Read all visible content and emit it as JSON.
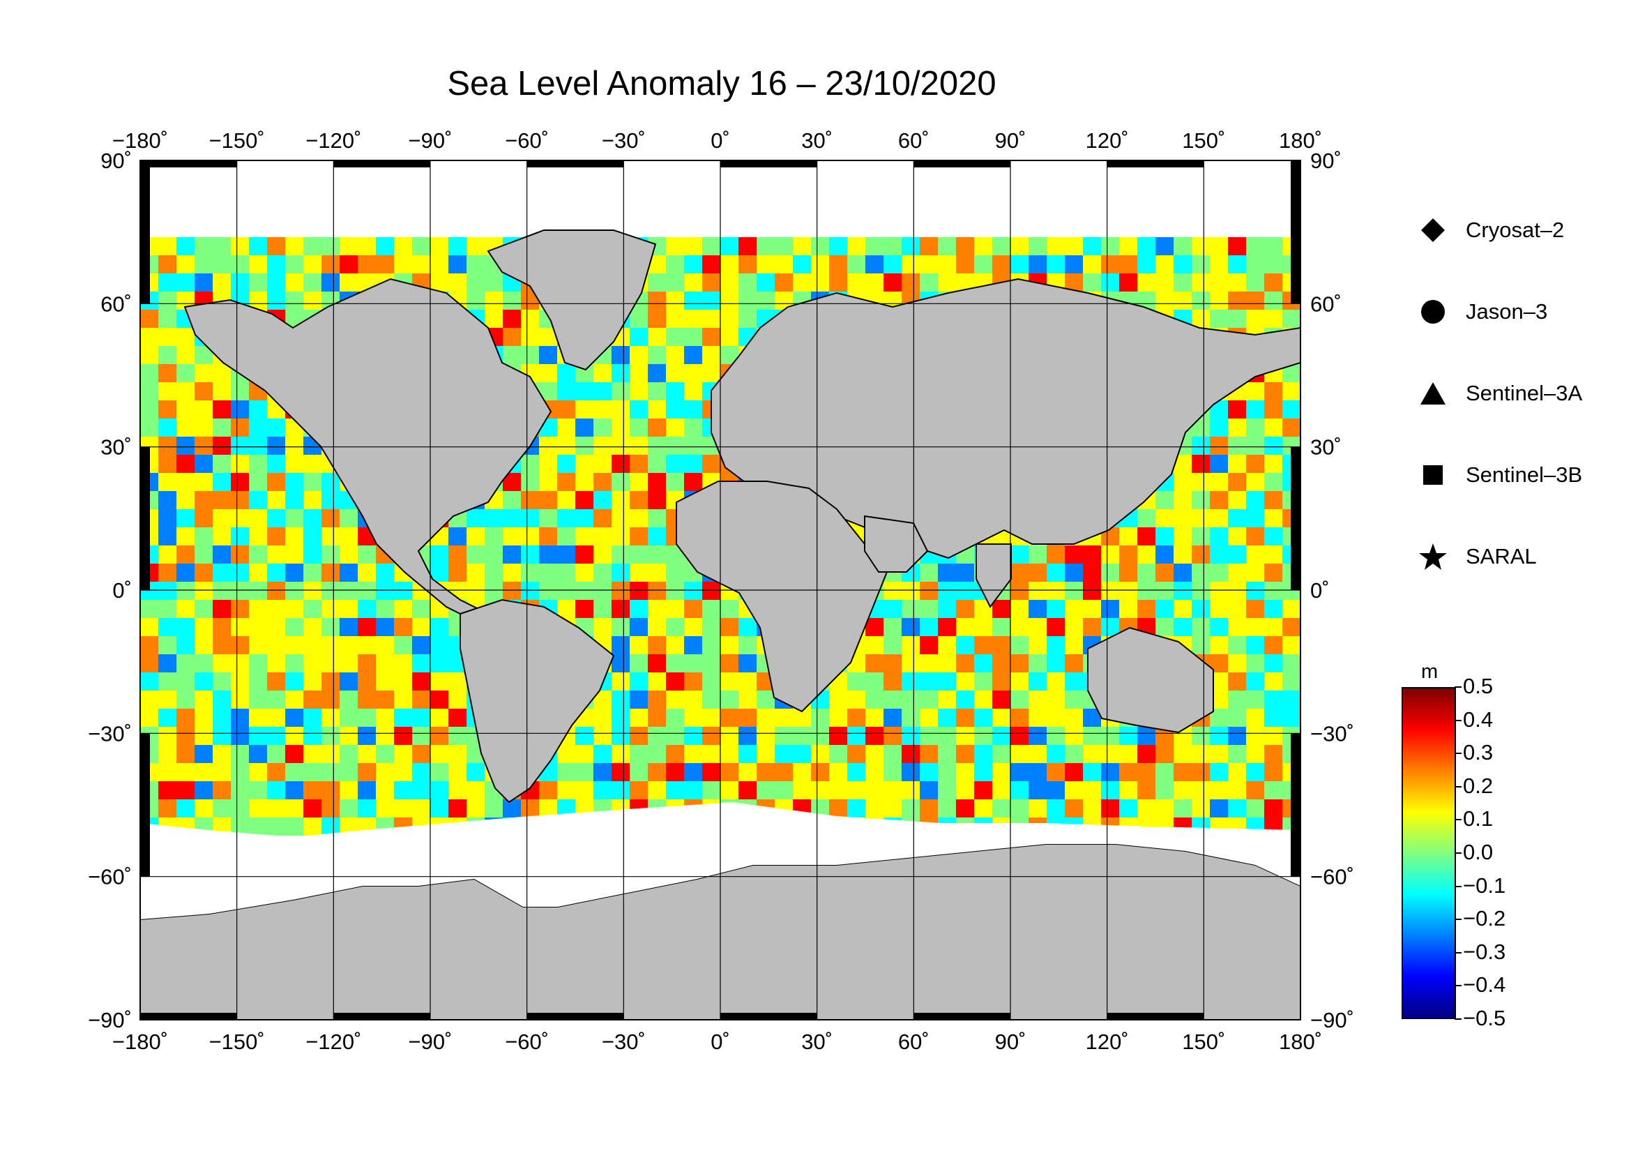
{
  "title": "Sea Level Anomaly 16 – 23/10/2020",
  "map": {
    "lon_ticks": [
      "−180˚",
      "−150˚",
      "−120˚",
      "−90˚",
      "−60˚",
      "−30˚",
      "0˚",
      "30˚",
      "60˚",
      "90˚",
      "120˚",
      "150˚",
      "180˚"
    ],
    "lat_ticks": [
      "90˚",
      "60˚",
      "30˚",
      "0˚",
      "−30˚",
      "−60˚",
      "−90˚"
    ],
    "land_color": "#bdbdbd",
    "ice_color": "#ffffff"
  },
  "legend": {
    "items": [
      {
        "label": "Cryosat–2",
        "symbol": "diamond"
      },
      {
        "label": "Jason–3",
        "symbol": "circle"
      },
      {
        "label": "Sentinel–3A",
        "symbol": "triangle"
      },
      {
        "label": "Sentinel–3B",
        "symbol": "square"
      },
      {
        "label": "SARAL",
        "symbol": "star"
      }
    ]
  },
  "colorbar": {
    "unit": "m",
    "ticks": [
      "0.5",
      "0.4",
      "0.3",
      "0.2",
      "0.1",
      "0.0",
      "−0.1",
      "−0.2",
      "−0.3",
      "−0.4",
      "−0.5"
    ],
    "range": [
      -0.5,
      0.5
    ],
    "colors": [
      "#00007f",
      "#0000ff",
      "#0080ff",
      "#00ffff",
      "#80ff80",
      "#ffff00",
      "#ff8000",
      "#ff0000",
      "#7f0000"
    ]
  }
}
